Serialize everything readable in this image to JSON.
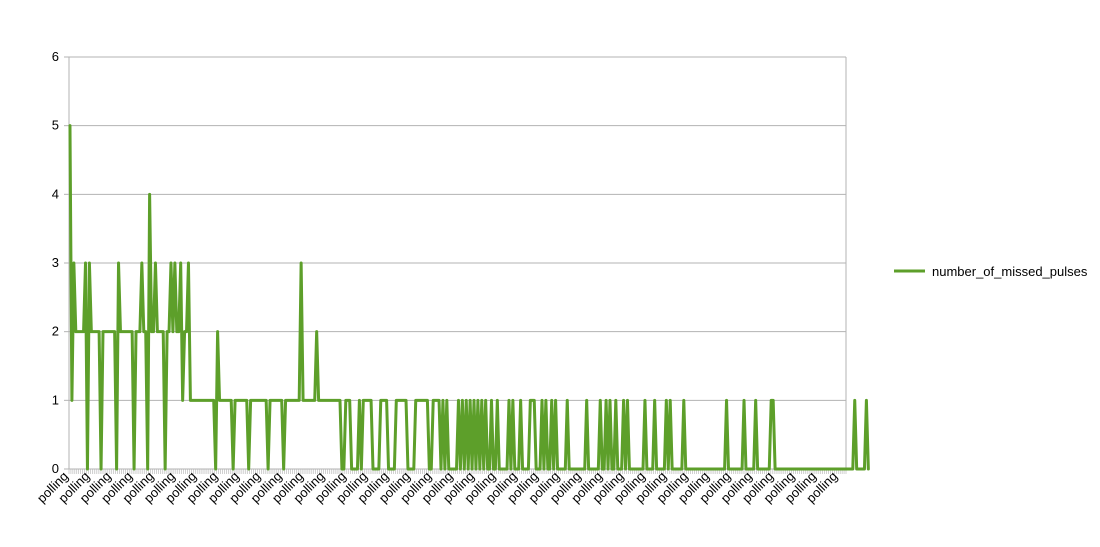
{
  "chart_data": {
    "type": "line",
    "title": "",
    "xlabel": "",
    "ylabel": "",
    "ylim": [
      0,
      6
    ],
    "yticks": [
      0,
      1,
      2,
      3,
      4,
      5,
      6
    ],
    "grid": "horizontal",
    "legend_position": "right",
    "category_label": "polling",
    "category_count": 400,
    "x_tick_label_every": 11,
    "series": [
      {
        "name": "number_of_missed_pulses",
        "color": "#5d9f2a",
        "values": [
          5,
          1,
          3,
          2,
          2,
          2,
          2,
          2,
          3,
          0,
          3,
          2,
          2,
          2,
          2,
          2,
          0,
          2,
          2,
          2,
          2,
          2,
          2,
          2,
          0,
          3,
          2,
          2,
          2,
          2,
          2,
          2,
          2,
          0,
          2,
          2,
          2,
          3,
          2,
          2,
          0,
          4,
          2,
          2,
          3,
          2,
          2,
          2,
          2,
          0,
          2,
          2,
          3,
          2,
          3,
          2,
          2,
          3,
          1,
          2,
          2,
          3,
          1,
          1,
          1,
          1,
          1,
          1,
          1,
          1,
          1,
          1,
          1,
          1,
          1,
          0,
          2,
          1,
          1,
          1,
          1,
          1,
          1,
          1,
          0,
          1,
          1,
          1,
          1,
          1,
          1,
          1,
          0,
          1,
          1,
          1,
          1,
          1,
          1,
          1,
          1,
          1,
          0,
          1,
          1,
          1,
          1,
          1,
          1,
          1,
          0,
          1,
          1,
          1,
          1,
          1,
          1,
          1,
          1,
          3,
          1,
          1,
          1,
          1,
          1,
          1,
          1,
          2,
          1,
          1,
          1,
          1,
          1,
          1,
          1,
          1,
          1,
          1,
          1,
          1,
          0,
          0,
          1,
          1,
          1,
          0,
          0,
          0,
          0,
          1,
          0,
          1,
          1,
          1,
          1,
          1,
          0,
          0,
          0,
          0,
          1,
          1,
          1,
          1,
          0,
          0,
          0,
          0,
          1,
          1,
          1,
          1,
          1,
          1,
          0,
          0,
          0,
          0,
          1,
          1,
          1,
          1,
          1,
          1,
          1,
          0,
          0,
          1,
          1,
          1,
          1,
          0,
          1,
          0,
          1,
          0,
          0,
          0,
          0,
          0,
          1,
          0,
          1,
          0,
          1,
          0,
          1,
          0,
          1,
          0,
          1,
          0,
          1,
          0,
          1,
          0,
          0,
          1,
          0,
          0,
          1,
          0,
          0,
          0,
          0,
          0,
          1,
          0,
          1,
          0,
          0,
          0,
          1,
          0,
          0,
          0,
          0,
          1,
          1,
          1,
          0,
          0,
          0,
          1,
          0,
          1,
          0,
          0,
          1,
          0,
          1,
          0,
          0,
          0,
          0,
          0,
          1,
          0,
          0,
          0,
          0,
          0,
          0,
          0,
          0,
          0,
          1,
          0,
          0,
          0,
          0,
          0,
          0,
          1,
          0,
          0,
          1,
          0,
          1,
          0,
          0,
          1,
          0,
          0,
          0,
          1,
          0,
          1,
          0,
          0,
          0,
          0,
          0,
          0,
          0,
          0,
          1,
          0,
          0,
          0,
          0,
          1,
          0,
          0,
          0,
          0,
          0,
          1,
          0,
          1,
          0,
          0,
          0,
          0,
          0,
          0,
          1,
          0,
          0,
          0,
          0,
          0,
          0,
          0,
          0,
          0,
          0,
          0,
          0,
          0,
          0,
          0,
          0,
          0,
          0,
          0,
          0,
          0,
          1,
          0,
          0,
          0,
          0,
          0,
          0,
          0,
          0,
          1,
          0,
          0,
          0,
          0,
          0,
          1,
          0,
          0,
          0,
          0,
          0,
          0,
          0,
          1,
          1,
          0,
          0,
          0,
          0,
          0,
          0,
          0,
          0,
          0,
          0,
          0,
          0,
          0,
          0,
          0,
          0,
          0,
          0,
          0,
          0,
          0,
          0,
          0,
          0,
          0,
          0,
          0,
          0,
          0,
          0,
          0,
          0,
          0,
          0,
          0,
          0,
          0,
          0,
          0,
          0,
          0,
          1,
          0,
          0,
          0,
          0,
          0,
          1,
          0
        ]
      }
    ]
  }
}
